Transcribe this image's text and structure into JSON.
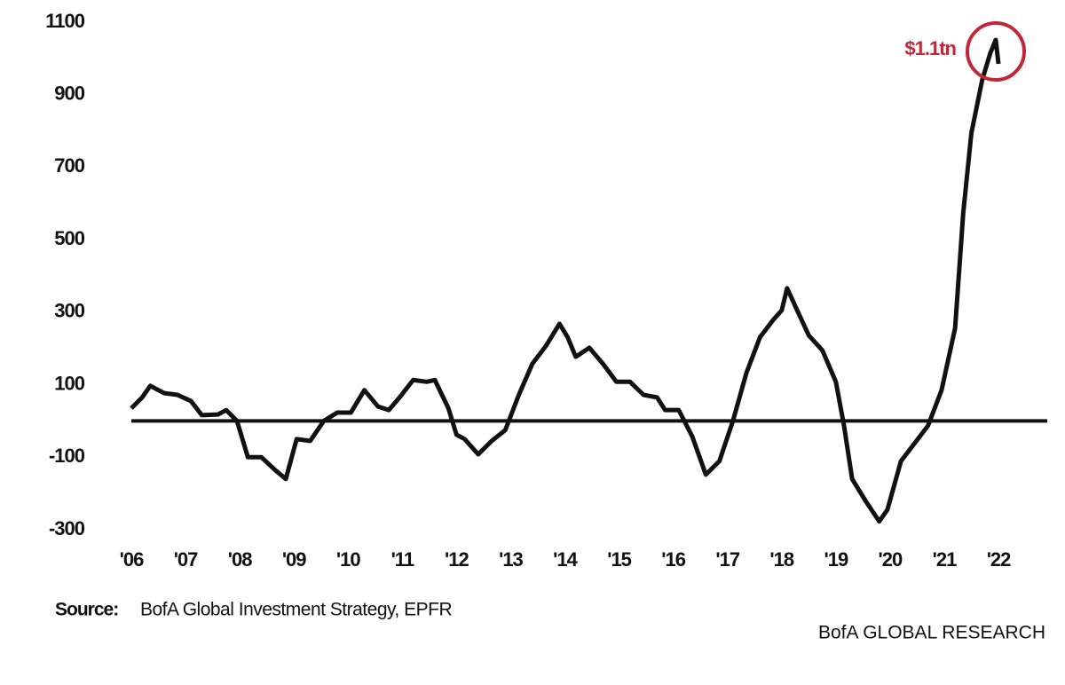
{
  "chart_data": {
    "type": "line",
    "annotation": "$1.1tn",
    "annotation_color": "#c0283a",
    "source_label": "Source:",
    "source": "BofA Global Investment Strategy, EPFR",
    "brand": "BofA GLOBAL RESEARCH",
    "reference_line": 0,
    "xlim": [
      2006,
      2022.9
    ],
    "xticks": [
      {
        "value": 2006,
        "label": "'06"
      },
      {
        "value": 2007,
        "label": "'07"
      },
      {
        "value": 2008,
        "label": "'08"
      },
      {
        "value": 2009,
        "label": "'09"
      },
      {
        "value": 2010,
        "label": "'10"
      },
      {
        "value": 2011,
        "label": "'11"
      },
      {
        "value": 2012,
        "label": "'12"
      },
      {
        "value": 2013,
        "label": "'13"
      },
      {
        "value": 2014,
        "label": "'14"
      },
      {
        "value": 2015,
        "label": "'15"
      },
      {
        "value": 2016,
        "label": "'16"
      },
      {
        "value": 2017,
        "label": "'17"
      },
      {
        "value": 2018,
        "label": "'18"
      },
      {
        "value": 2019,
        "label": "'19"
      },
      {
        "value": 2020,
        "label": "'20"
      },
      {
        "value": 2021,
        "label": "'21"
      },
      {
        "value": 2022,
        "label": "'22"
      }
    ],
    "ylim": [
      -300,
      1100
    ],
    "yticks": [
      -300,
      -100,
      100,
      300,
      500,
      700,
      900,
      1100
    ],
    "x": [
      2006.0,
      2006.2,
      2006.35,
      2006.6,
      2006.85,
      2007.1,
      2007.3,
      2007.6,
      2007.75,
      2007.95,
      2008.15,
      2008.4,
      2008.65,
      2008.85,
      2009.05,
      2009.3,
      2009.55,
      2009.8,
      2010.05,
      2010.3,
      2010.55,
      2010.75,
      2010.95,
      2011.2,
      2011.45,
      2011.6,
      2011.85,
      2012.0,
      2012.15,
      2012.4,
      2012.65,
      2012.9,
      2013.15,
      2013.4,
      2013.65,
      2013.9,
      2014.05,
      2014.2,
      2014.45,
      2014.7,
      2014.95,
      2015.2,
      2015.45,
      2015.7,
      2015.85,
      2016.1,
      2016.35,
      2016.6,
      2016.85,
      2017.1,
      2017.35,
      2017.6,
      2017.85,
      2018.0,
      2018.1,
      2018.25,
      2018.5,
      2018.75,
      2019.0,
      2019.15,
      2019.3,
      2019.55,
      2019.8,
      2019.95,
      2020.2,
      2020.45,
      2020.7,
      2020.95,
      2021.2,
      2021.35,
      2021.5,
      2021.7,
      2021.85,
      2021.95,
      2022.0
    ],
    "series": [
      {
        "color": "#111111",
        "values": [
          35,
          65,
          97,
          77,
          72,
          55,
          16,
          18,
          30,
          0,
          -100,
          -100,
          -135,
          -160,
          -50,
          -55,
          0,
          23,
          23,
          85,
          40,
          30,
          65,
          113,
          108,
          113,
          35,
          -38,
          -50,
          -92,
          -55,
          -25,
          72,
          158,
          207,
          268,
          231,
          177,
          202,
          158,
          108,
          108,
          72,
          65,
          30,
          30,
          -43,
          -148,
          -111,
          0,
          133,
          231,
          280,
          305,
          366,
          317,
          236,
          195,
          108,
          -13,
          -160,
          -221,
          -277,
          -245,
          -111,
          -62,
          -13,
          85,
          256,
          574,
          794,
          941,
          1015,
          1051,
          985
        ]
      }
    ]
  }
}
